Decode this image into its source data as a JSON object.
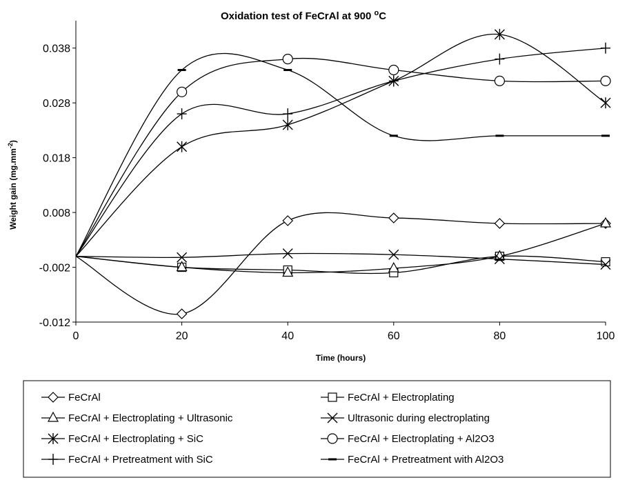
{
  "chart_data": {
    "type": "line",
    "title": "Oxidation test of FeCrAl at 900 ",
    "title_superscript": "o",
    "title_suffix": "C",
    "xlabel": "Time (hours)",
    "ylabel": "Weight gain (mg.mm",
    "ylabel_superscript": "-2",
    "ylabel_suffix": ")",
    "x": [
      0,
      20,
      40,
      60,
      80,
      100
    ],
    "xlim": [
      0,
      100
    ],
    "ylim": [
      -0.012,
      0.043
    ],
    "x_ticks": [
      "0",
      "20",
      "40",
      "60",
      "80",
      "100"
    ],
    "x_tick_values": [
      0,
      20,
      40,
      60,
      80,
      100
    ],
    "y_ticks": [
      "-0.012",
      "-0.002",
      "0.008",
      "0.018",
      "0.028",
      "0.038"
    ],
    "y_tick_values": [
      -0.012,
      -0.002,
      0.008,
      0.018,
      0.028,
      0.038
    ],
    "grid": false,
    "legend_position": "bottom",
    "line_color": "#000000",
    "series": [
      {
        "name": "FeCrAl",
        "marker": "diamond",
        "values": [
          0,
          -0.0105,
          0.0065,
          0.007,
          0.006,
          0.006
        ]
      },
      {
        "name": "FeCrAl + Electroplating",
        "marker": "square",
        "values": [
          0,
          -0.002,
          -0.0025,
          -0.003,
          0.0,
          -0.001
        ]
      },
      {
        "name": "FeCrAl + Electroplating + Ultrasonic",
        "marker": "triangle",
        "values": [
          0,
          -0.002,
          -0.003,
          -0.0022,
          0.0,
          0.006
        ]
      },
      {
        "name": "Ultrasonic during electroplating",
        "marker": "x",
        "values": [
          0,
          -0.0002,
          0.0005,
          0.0003,
          -0.0005,
          -0.0015
        ]
      },
      {
        "name": "FeCrAl + Electroplating + SiC",
        "marker": "asterisk",
        "values": [
          0,
          0.02,
          0.024,
          0.032,
          0.0405,
          0.028
        ]
      },
      {
        "name": "FeCrAl + Electroplating + Al2O3",
        "marker": "circle",
        "values": [
          0,
          0.03,
          0.036,
          0.034,
          0.032,
          0.032
        ]
      },
      {
        "name": "FeCrAl + Pretreatment with SiC",
        "marker": "plus",
        "values": [
          0,
          0.026,
          0.026,
          0.032,
          0.036,
          0.038
        ]
      },
      {
        "name": "FeCrAl + Pretreatment with Al2O3",
        "marker": "dash",
        "values": [
          0,
          0.034,
          0.034,
          0.022,
          0.022,
          0.022
        ]
      }
    ]
  }
}
